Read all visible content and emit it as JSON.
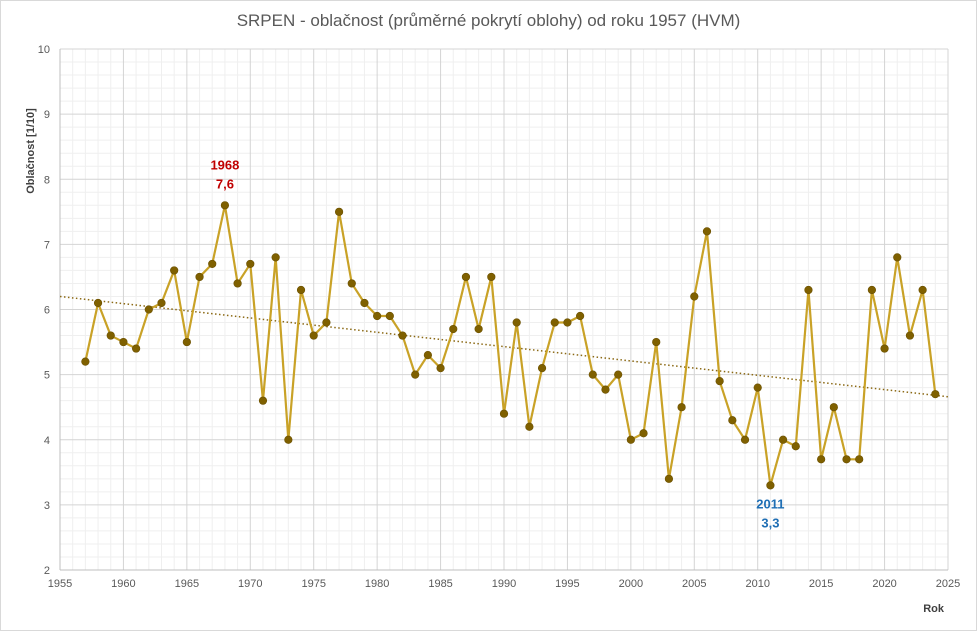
{
  "chart_data": {
    "type": "line",
    "title": "SRPEN - oblačnost (průměrné pokrytí oblohy) od roku 1957 (HVM)",
    "xlabel": "Rok",
    "ylabel": "Oblačnost  [1/10]",
    "xlim": [
      1955,
      2025
    ],
    "ylim": [
      2,
      10
    ],
    "x_ticks": [
      "1955",
      "1960",
      "1965",
      "1970",
      "1975",
      "1980",
      "1985",
      "1990",
      "1995",
      "2000",
      "2005",
      "2010",
      "2015",
      "2020",
      "2025"
    ],
    "y_ticks": [
      "2",
      "3",
      "4",
      "5",
      "6",
      "7",
      "8",
      "9",
      "10"
    ],
    "grid": true,
    "series": [
      {
        "x": [
          1957,
          1958,
          1959,
          1960,
          1961,
          1962,
          1963,
          1964,
          1965,
          1966,
          1967,
          1968,
          1969,
          1970,
          1971,
          1972,
          1973,
          1974,
          1975,
          1976,
          1977,
          1978,
          1979,
          1980,
          1981,
          1982,
          1983,
          1984,
          1985,
          1986,
          1987,
          1988,
          1989,
          1990,
          1991,
          1992,
          1993,
          1994,
          1995,
          1996,
          1997,
          1998,
          1999,
          2000,
          2001,
          2002,
          2003,
          2004,
          2005,
          2006,
          2007,
          2008,
          2009,
          2010,
          2011,
          2012,
          2013,
          2014,
          2015,
          2016,
          2017,
          2018,
          2019,
          2020,
          2021,
          2022,
          2023,
          2024
        ],
        "values": [
          5.2,
          6.1,
          5.6,
          5.5,
          5.4,
          6.0,
          6.1,
          6.6,
          5.5,
          6.5,
          6.7,
          7.6,
          6.4,
          6.7,
          4.6,
          6.8,
          4.0,
          6.3,
          5.6,
          5.8,
          7.5,
          6.4,
          6.1,
          5.9,
          5.9,
          5.6,
          5.0,
          5.3,
          5.1,
          5.7,
          6.5,
          5.7,
          6.5,
          4.4,
          5.8,
          4.2,
          5.1,
          5.8,
          5.8,
          5.9,
          5.0,
          4.77,
          5.0,
          4.0,
          4.1,
          5.5,
          3.4,
          4.5,
          6.2,
          7.2,
          4.9,
          4.3,
          4.0,
          4.8,
          3.3,
          4.0,
          3.9,
          6.3,
          3.7,
          4.5,
          3.7,
          3.7,
          6.3,
          5.4,
          6.8,
          5.6,
          6.3,
          4.7
        ],
        "color": "#c9a227",
        "marker_color": "#7f6000"
      }
    ],
    "trendline": {
      "x": [
        1955,
        2025
      ],
      "values": [
        6.2,
        4.66
      ],
      "color": "#8b6914",
      "style": "dotted"
    },
    "annotations": [
      {
        "year_label": "1968",
        "value_label": "7,6",
        "x": 1968,
        "y": 7.6,
        "color": "#c00000"
      },
      {
        "year_label": "2011",
        "value_label": "3,3",
        "x": 2011,
        "y": 3.3,
        "color": "#1f6fb5"
      }
    ]
  }
}
